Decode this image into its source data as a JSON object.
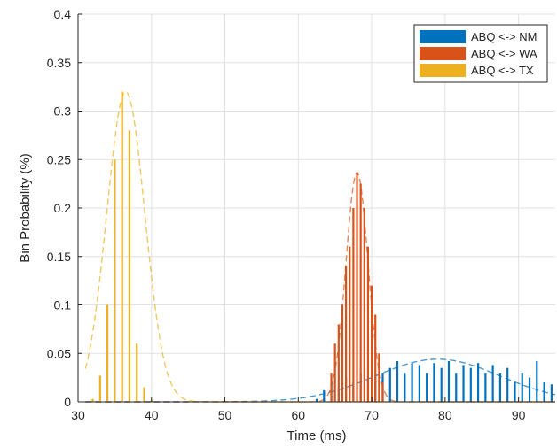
{
  "chart_data": {
    "type": "bar",
    "xlabel": "Time (ms)",
    "ylabel": "Bin Probability (%)",
    "xlim": [
      30,
      95
    ],
    "ylim": [
      0,
      0.4
    ],
    "xticks": [
      30,
      40,
      50,
      60,
      70,
      80,
      90
    ],
    "yticks": [
      0,
      0.05,
      0.1,
      0.15,
      0.2,
      0.25,
      0.3,
      0.35,
      0.4
    ],
    "grid": true,
    "legend_position": "top-right",
    "series": [
      {
        "name": "ABQ <-> NM",
        "color": "#0072BD",
        "bins": [
          [
            62.5,
            0.003
          ],
          [
            63.5,
            0.012
          ],
          [
            64.5,
            0.02
          ],
          [
            65.5,
            0.015
          ],
          [
            66.5,
            0.025
          ],
          [
            67.5,
            0.02
          ],
          [
            68.5,
            0.03
          ],
          [
            69.5,
            0.022
          ],
          [
            70.5,
            0.028
          ],
          [
            71.5,
            0.03
          ],
          [
            72.5,
            0.035
          ],
          [
            73.5,
            0.042
          ],
          [
            74.5,
            0.03
          ],
          [
            75.5,
            0.04
          ],
          [
            76.5,
            0.038
          ],
          [
            77.5,
            0.03
          ],
          [
            78.5,
            0.04
          ],
          [
            79.5,
            0.035
          ],
          [
            80.5,
            0.042
          ],
          [
            81.5,
            0.03
          ],
          [
            82.5,
            0.038
          ],
          [
            83.5,
            0.035
          ],
          [
            84.5,
            0.04
          ],
          [
            85.5,
            0.03
          ],
          [
            86.5,
            0.038
          ],
          [
            87.5,
            0.03
          ],
          [
            88.5,
            0.035
          ],
          [
            89.5,
            0.02
          ],
          [
            90.5,
            0.03
          ],
          [
            91.5,
            0.025
          ],
          [
            92.5,
            0.042
          ],
          [
            93.5,
            0.02
          ],
          [
            94.5,
            0.018
          ]
        ],
        "fit": {
          "mean": 79,
          "sd": 8.5,
          "peak": 0.044
        }
      },
      {
        "name": "ABQ <-> WA",
        "color": "#D95319",
        "bins": [
          [
            64.5,
            0.03
          ],
          [
            65,
            0.06
          ],
          [
            65.5,
            0.08
          ],
          [
            66,
            0.1
          ],
          [
            66.5,
            0.14
          ],
          [
            67,
            0.16
          ],
          [
            67.5,
            0.2
          ],
          [
            68,
            0.235
          ],
          [
            68.5,
            0.225
          ],
          [
            69,
            0.2
          ],
          [
            69.5,
            0.16
          ],
          [
            70,
            0.12
          ],
          [
            70.5,
            0.09
          ],
          [
            71,
            0.05
          ],
          [
            71.5,
            0.02
          ]
        ],
        "fit": {
          "mean": 68,
          "sd": 1.5,
          "peak": 0.237
        }
      },
      {
        "name": "ABQ <-> TX",
        "color": "#EDB120",
        "bins": [
          [
            32,
            0.003
          ],
          [
            33,
            0.027
          ],
          [
            34,
            0.1
          ],
          [
            35,
            0.25
          ],
          [
            36,
            0.32
          ],
          [
            37,
            0.28
          ],
          [
            38,
            0.06
          ],
          [
            39,
            0.015
          ],
          [
            40,
            0.002
          ]
        ],
        "fit": {
          "mean": 36.5,
          "sd": 2.6,
          "peak": 0.32
        }
      }
    ]
  }
}
